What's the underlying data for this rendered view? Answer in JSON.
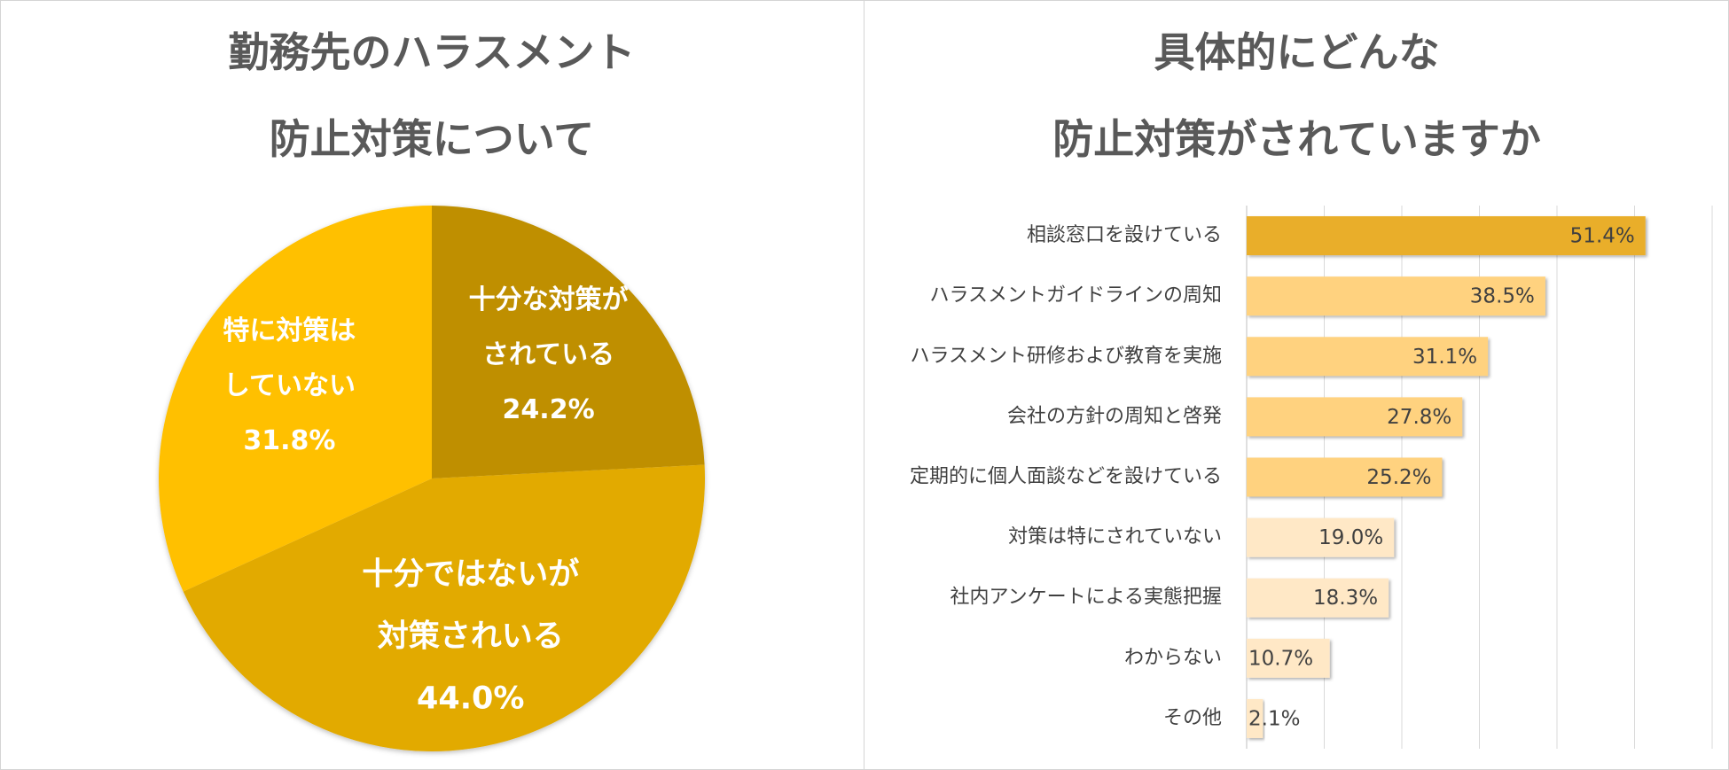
{
  "chart_data": [
    {
      "type": "pie",
      "title_lines": [
        "勤務先のハラスメント",
        "防止対策について"
      ],
      "slices": [
        {
          "label_lines": [
            "十分な対策が",
            "されている"
          ],
          "value": 24.2,
          "value_label": "24.2%",
          "color": "#BF8F00"
        },
        {
          "label_lines": [
            "十分ではないが",
            "対策されいる"
          ],
          "value": 44.0,
          "value_label": "44.0%",
          "color": "#E2AA00"
        },
        {
          "label_lines": [
            "特に対策は",
            "していない"
          ],
          "value": 31.8,
          "value_label": "31.8%",
          "color": "#FFC000"
        }
      ],
      "start_angle": "12 o'clock, clockwise"
    },
    {
      "type": "bar",
      "orientation": "horizontal",
      "title_lines": [
        "具体的にどんな",
        "防止対策がされていますか"
      ],
      "categories": [
        "相談窓口を設けている",
        "ハラスメントガイドラインの周知",
        "ハラスメント研修および教育を実施",
        "会社の方針の周知と啓発",
        "定期的に個人面談などを設けている",
        "対策は特にされていない",
        "社内アンケートによる実態把握",
        "わからない",
        "その他"
      ],
      "values": [
        51.4,
        38.5,
        31.1,
        27.8,
        25.2,
        19.0,
        18.3,
        10.7,
        2.1
      ],
      "value_labels": [
        "51.4%",
        "38.5%",
        "31.1%",
        "27.8%",
        "25.2%",
        "19.0%",
        "18.3%",
        "10.7%",
        "2.1%"
      ],
      "bar_colors": [
        "#E9AE2A",
        "#FFD27F",
        "#FFD27F",
        "#FFD27F",
        "#FFD27F",
        "#FFE8C6",
        "#FFE8C6",
        "#FFE8C6",
        "#FFE8C6"
      ],
      "xlim": [
        0,
        60
      ],
      "grid": true
    }
  ]
}
